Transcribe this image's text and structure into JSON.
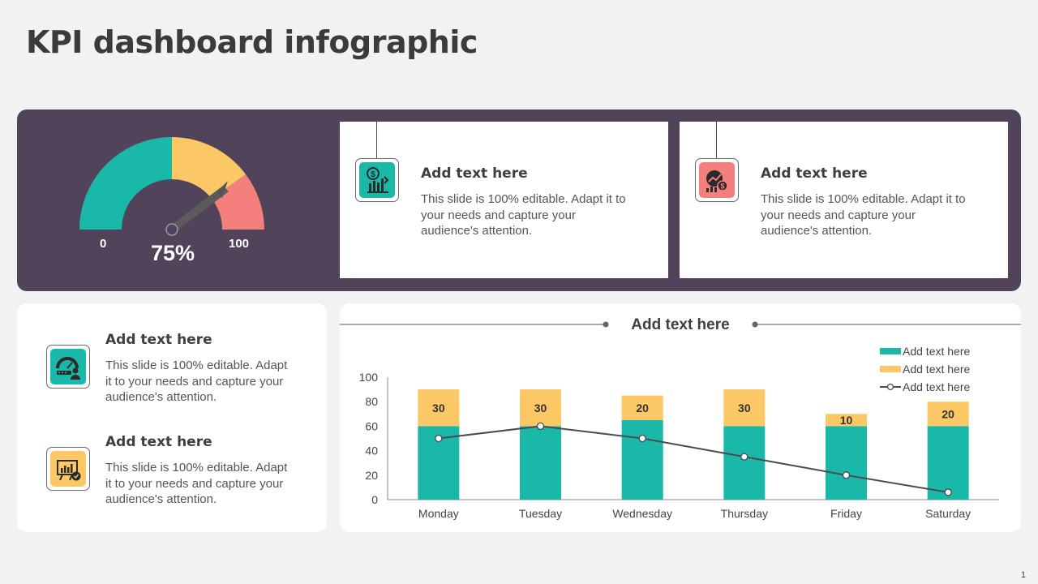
{
  "title": "KPI dashboard infographic",
  "colors": {
    "teal": "#1ab8a9",
    "yellow": "#fcc865",
    "coral": "#f57f7d",
    "purple": "#51445a"
  },
  "gauge": {
    "min_label": "0",
    "max_label": "100",
    "value_label": "75%",
    "value": 75
  },
  "top_cards": [
    {
      "title": "Add text here",
      "desc_lines": [
        "This slide is 100% editable. Adapt it to",
        "your needs and capture your",
        "audience's attention."
      ],
      "icon": "money-chart-icon"
    },
    {
      "title": "Add text here",
      "desc_lines": [
        "This slide is 100% editable. Adapt it to",
        "your needs and capture your",
        "audience's attention."
      ],
      "icon": "globe-chart-icon"
    }
  ],
  "left_items": [
    {
      "title": "Add text here",
      "desc_lines": [
        "This slide is 100% editable. Adapt",
        "it to your needs and capture your",
        "audience's attention."
      ],
      "icon": "speedometer-user-icon"
    },
    {
      "title": "Add text here",
      "desc_lines": [
        "This slide is 100% editable. Adapt",
        "it to your needs and capture your",
        "audience's attention."
      ],
      "icon": "presentation-board-icon"
    }
  ],
  "chart_data": {
    "type": "bar",
    "title": "Add text here",
    "categories": [
      "Monday",
      "Tuesday",
      "Wednesday",
      "Thursday",
      "Friday",
      "Saturday"
    ],
    "series": [
      {
        "name": "Add text here",
        "kind": "bar",
        "values": [
          60,
          60,
          65,
          60,
          60,
          60
        ]
      },
      {
        "name": "Add text here",
        "kind": "bar-stacked",
        "values": [
          30,
          30,
          20,
          30,
          10,
          20
        ],
        "labels": [
          "30",
          "30",
          "20",
          "30",
          "10",
          "20"
        ]
      },
      {
        "name": "Add text here",
        "kind": "line",
        "values": [
          50,
          60,
          50,
          35,
          20,
          6
        ]
      }
    ],
    "ylim": [
      0,
      100
    ],
    "yticks": [
      "0",
      "20",
      "40",
      "60",
      "80",
      "100"
    ],
    "legend": "top-right"
  },
  "page_number": "1"
}
